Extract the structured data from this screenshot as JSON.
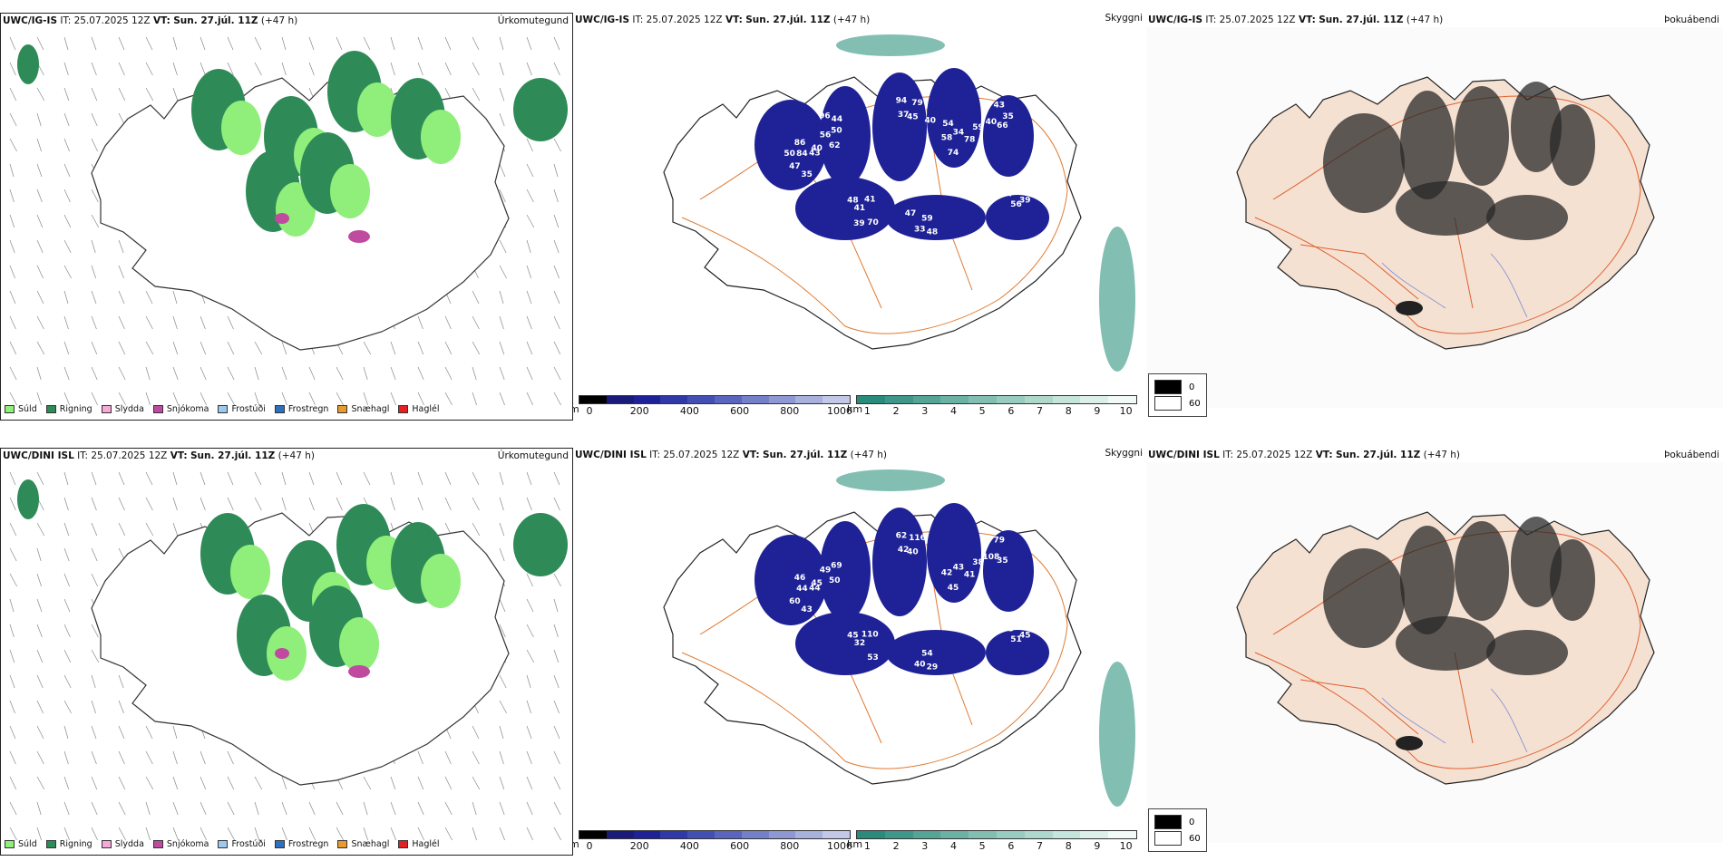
{
  "rows": [
    {
      "model": "UWC/IG-IS",
      "it_label": "IT: 25.07.2025 12Z",
      "vt_label": "VT:",
      "vt_value": "Sun. 27.júl. 11Z",
      "lead": "(+47 h)",
      "precip_title": "Úrkomutegund",
      "cloud_title": "Skyggni",
      "fog_title": "Þokuábendi",
      "cloud_numbers": [
        "86",
        "62",
        "94",
        "78",
        "59",
        "48",
        "48",
        "47",
        "43",
        "40",
        "37",
        "34",
        "40",
        "41",
        "44",
        "56",
        "84",
        "56",
        "79",
        "74",
        "66",
        "41",
        "33",
        "33",
        "35",
        "50",
        "45",
        "58",
        "43",
        "70",
        "59",
        "39",
        "47",
        "96",
        "40",
        "54",
        "35",
        "39",
        "47",
        "42",
        "50",
        "44"
      ]
    },
    {
      "model": "UWC/DINI ISL",
      "it_label": "IT: 25.07.2025 12Z",
      "vt_label": "VT:",
      "vt_value": "Sun. 27.júl. 11Z",
      "lead": "(+47 h)",
      "precip_title": "Úrkomutegund",
      "cloud_title": "Skyggni",
      "fog_title": "Þokuábendi",
      "cloud_numbers": [
        "46",
        "50",
        "62",
        "41",
        "38",
        "45",
        "29",
        "33",
        "44",
        "45",
        "42",
        "43",
        "108",
        "110",
        "47",
        "51",
        "44",
        "49",
        "116",
        "45",
        "35",
        "32",
        "40",
        "39",
        "43",
        "69",
        "40",
        "42",
        "79",
        "53",
        "54",
        "45",
        "60"
      ]
    }
  ],
  "precip_legend": [
    {
      "label": "Súld",
      "color": "#90ee7a"
    },
    {
      "label": "Rigning",
      "color": "#2e8b57"
    },
    {
      "label": "Slydda",
      "color": "#f4a9d6"
    },
    {
      "label": "Snjókoma",
      "color": "#c04aa0"
    },
    {
      "label": "Frostúði",
      "color": "#9ec9ee"
    },
    {
      "label": "Frostregn",
      "color": "#2f6fbf"
    },
    {
      "label": "Snæhagl",
      "color": "#e89a2c"
    },
    {
      "label": "Haglél",
      "color": "#e52020"
    }
  ],
  "height_bar": {
    "unit": "m",
    "ticks": [
      "0",
      "200",
      "400",
      "600",
      "800",
      "1000"
    ],
    "colors": [
      "#000000",
      "#1a1a7a",
      "#1e2296",
      "#2f39a8",
      "#4350b3",
      "#5a66bd",
      "#7480c8",
      "#8e98d2",
      "#a8b0dc",
      "#c3c8e8"
    ]
  },
  "vis_bar": {
    "unit": "km",
    "ticks": [
      "1",
      "2",
      "3",
      "4",
      "5",
      "6",
      "7",
      "8",
      "9",
      "10"
    ],
    "colors": [
      "#2a8a7c",
      "#3f9789",
      "#55a496",
      "#6bb1a4",
      "#82bfb2",
      "#98ccc0",
      "#afd8cd",
      "#c5e4db",
      "#dcefe9",
      "#f2faf7"
    ]
  },
  "fog_legend": [
    {
      "value": "0",
      "color": "#000000"
    },
    {
      "value": "60",
      "color": "#ffffff"
    }
  ]
}
